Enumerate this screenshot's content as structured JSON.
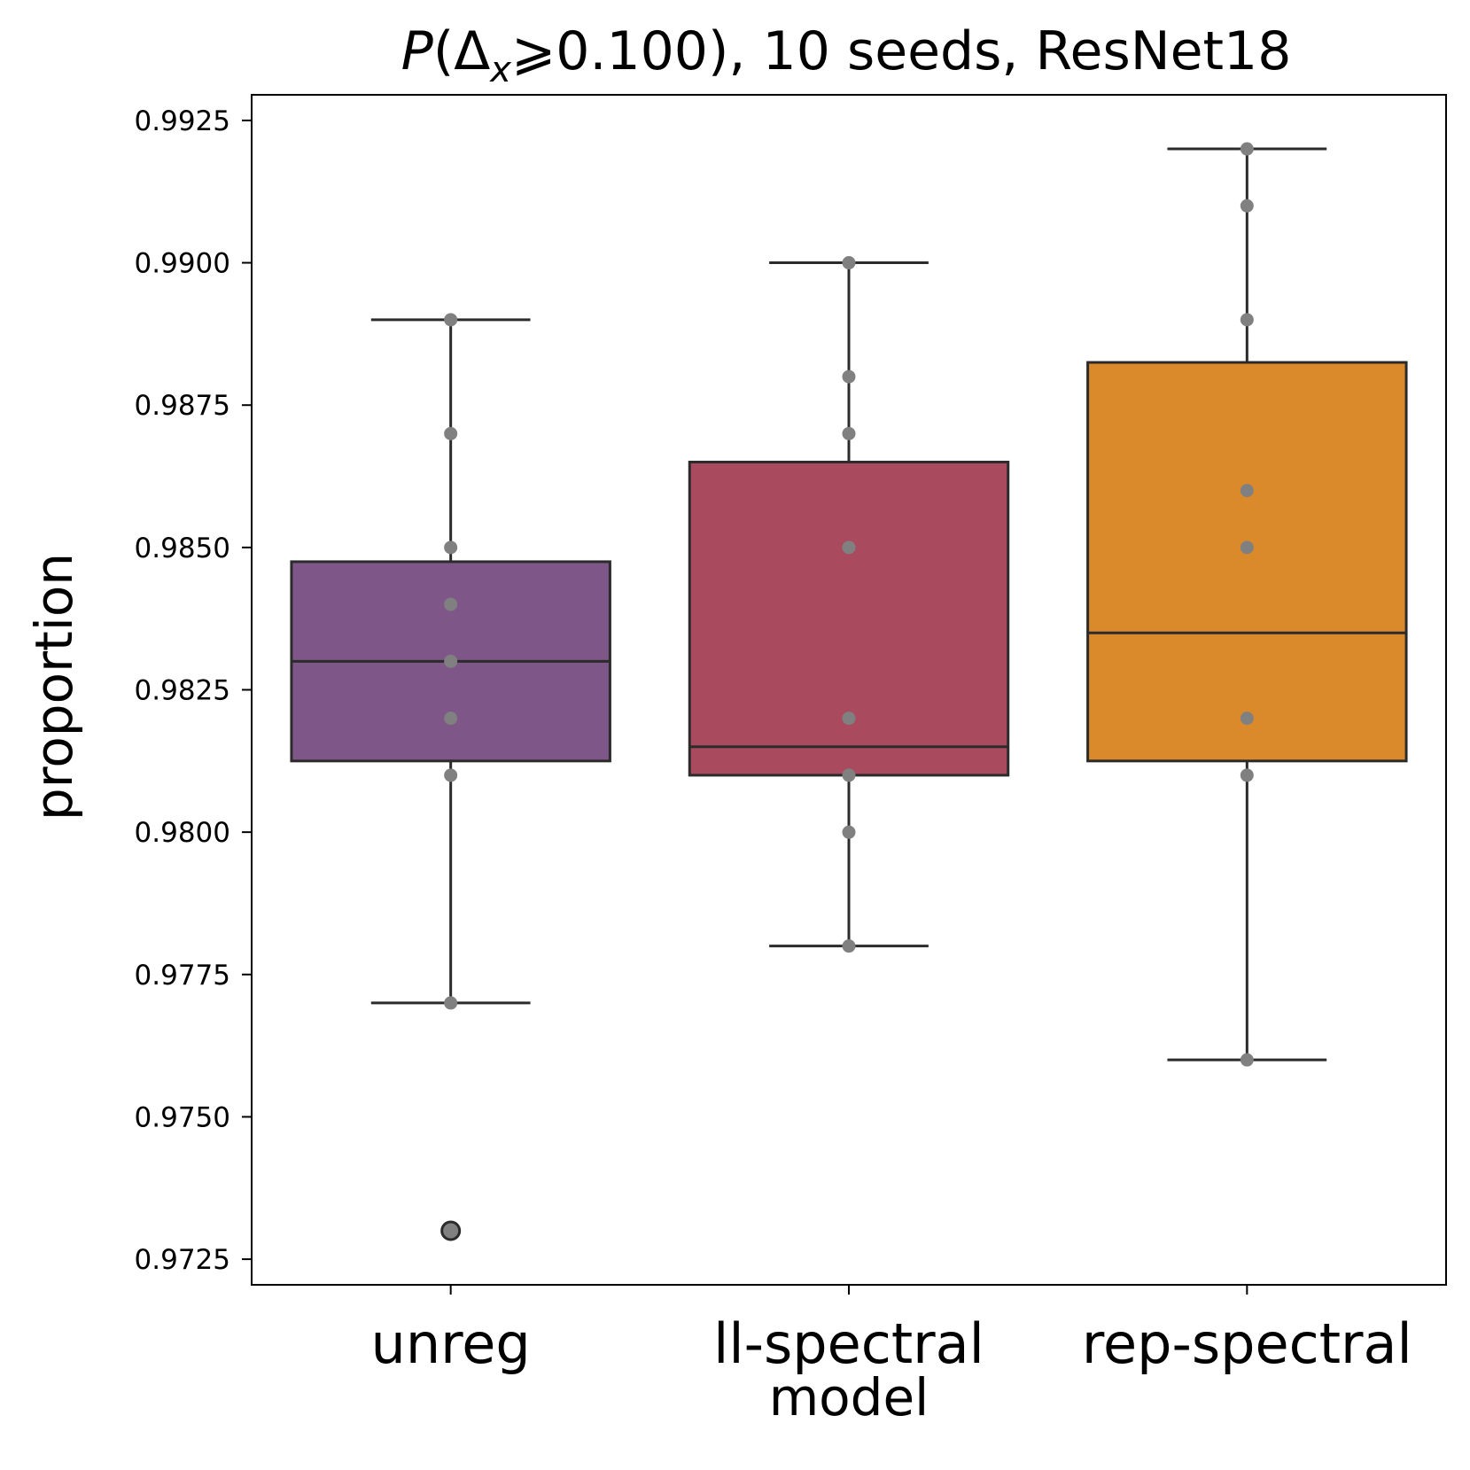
{
  "chart_data": {
    "type": "box",
    "title": {
      "prefix": "P",
      "open": "(Δ",
      "subscript": "x",
      "rest": "⩾0.100), 10 seeds, ResNet18"
    },
    "xlabel": "model",
    "ylabel": "proportion",
    "ylim": [
      0.97205,
      0.99295
    ],
    "yticks": [
      0.9725,
      0.975,
      0.9775,
      0.98,
      0.9825,
      0.985,
      0.9875,
      0.99,
      0.9925
    ],
    "ytick_labels": [
      "0.9725",
      "0.9750",
      "0.9775",
      "0.9800",
      "0.9825",
      "0.9850",
      "0.9875",
      "0.9900",
      "0.9925"
    ],
    "categories": [
      "unreg",
      "ll-spectral",
      "rep-spectral"
    ],
    "boxes": [
      {
        "name": "unreg",
        "color": "#7e5687",
        "q1": 0.98125,
        "median": 0.983,
        "q3": 0.98475,
        "whisker_low": 0.977,
        "whisker_high": 0.989,
        "outliers": [
          0.973
        ],
        "points": [
          0.989,
          0.987,
          0.985,
          0.984,
          0.983,
          0.982,
          0.981,
          0.977,
          0.973
        ]
      },
      {
        "name": "ll-spectral",
        "color": "#a94a5e",
        "q1": 0.981,
        "median": 0.9815,
        "q3": 0.9865,
        "whisker_low": 0.978,
        "whisker_high": 0.99,
        "outliers": [],
        "points": [
          0.99,
          0.988,
          0.987,
          0.985,
          0.982,
          0.981,
          0.98,
          0.978
        ]
      },
      {
        "name": "rep-spectral",
        "color": "#db8a2b",
        "q1": 0.98125,
        "median": 0.9835,
        "q3": 0.98825,
        "whisker_low": 0.976,
        "whisker_high": 0.992,
        "outliers": [],
        "points": [
          0.992,
          0.991,
          0.989,
          0.986,
          0.985,
          0.982,
          0.981,
          0.976
        ]
      }
    ],
    "point_color": "#808080",
    "line_color": "#2b2b2b",
    "grid": false,
    "legend": "none"
  }
}
